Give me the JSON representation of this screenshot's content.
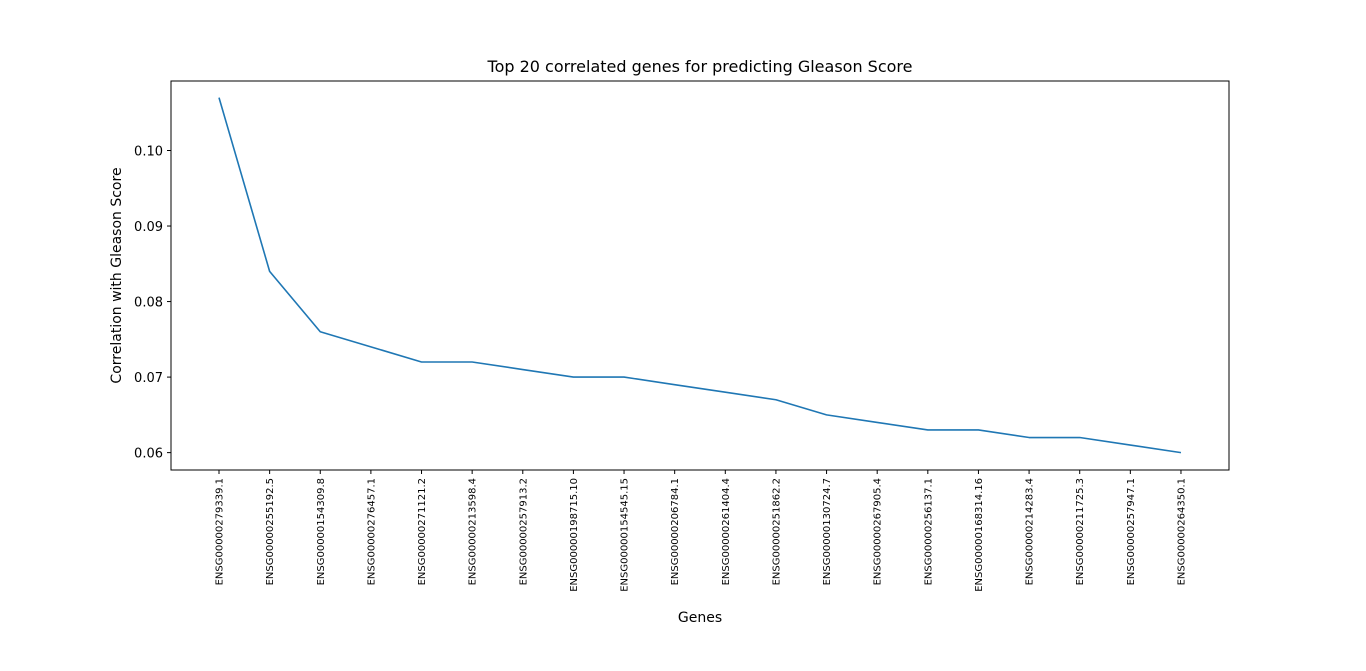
{
  "chart_data": {
    "type": "line",
    "title": "Top 20 correlated genes for predicting Gleason Score",
    "xlabel": "Genes",
    "ylabel": "Correlation with Gleason Score",
    "ylim": [
      0.0577,
      0.1092
    ],
    "yticks": [
      "0.06",
      "0.07",
      "0.08",
      "0.09",
      "0.10"
    ],
    "grid": false,
    "line_color": "#1f77b4",
    "categories": [
      "ENSG00000279339.1",
      "ENSG00000255192.5",
      "ENSG00000154309.8",
      "ENSG00000276457.1",
      "ENSG00000271121.2",
      "ENSG00000213598.4",
      "ENSG00000257913.2",
      "ENSG00000198715.10",
      "ENSG00000154545.15",
      "ENSG00000206784.1",
      "ENSG00000261404.4",
      "ENSG00000251862.2",
      "ENSG00000130724.7",
      "ENSG00000267905.4",
      "ENSG00000256137.1",
      "ENSG00000168314.16",
      "ENSG00000214283.4",
      "ENSG00000211725.3",
      "ENSG00000257947.1",
      "ENSG00000264350.1"
    ],
    "series": [
      {
        "values": [
          0.107,
          0.084,
          0.076,
          0.074,
          0.072,
          0.072,
          0.071,
          0.07,
          0.07,
          0.069,
          0.068,
          0.067,
          0.065,
          0.064,
          0.063,
          0.063,
          0.062,
          0.062,
          0.061,
          0.06
        ]
      }
    ]
  }
}
